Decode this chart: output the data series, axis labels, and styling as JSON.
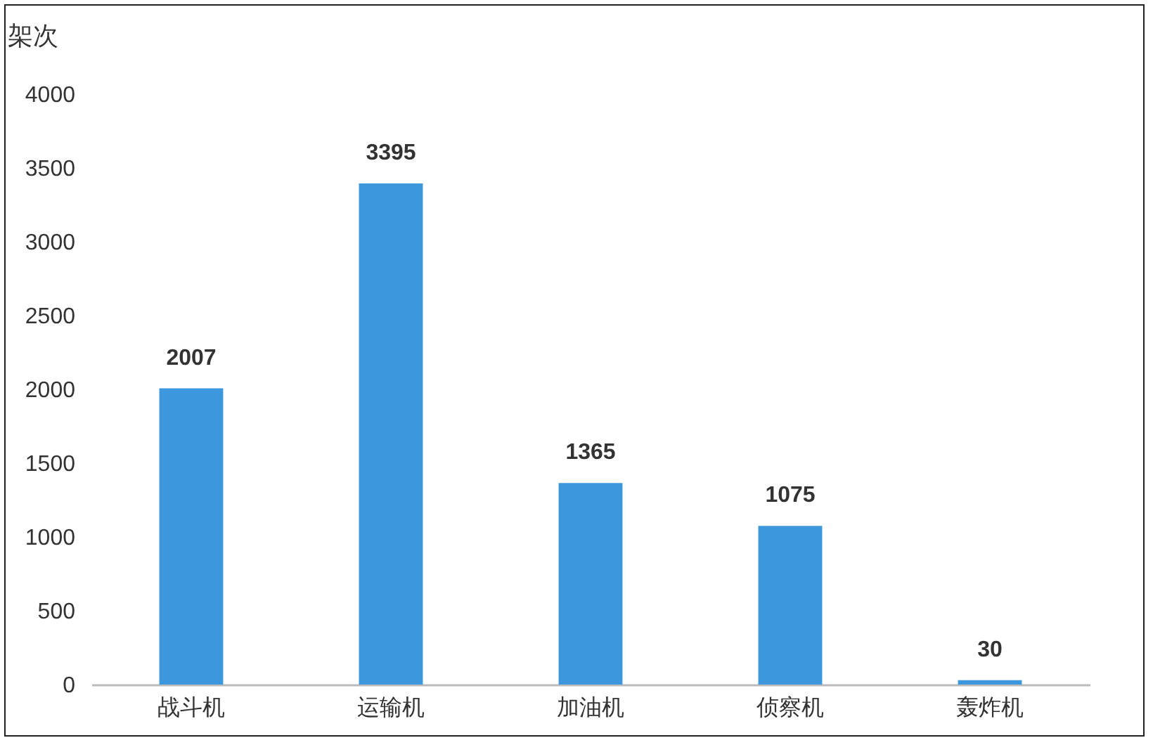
{
  "chart_data": {
    "type": "bar",
    "ylabel": "架次",
    "categories": [
      "战斗机",
      "运输机",
      "加油机",
      "侦察机",
      "轰炸机"
    ],
    "values": [
      2007,
      3395,
      1365,
      1075,
      30
    ],
    "color": "#3d97dc",
    "ylim": [
      0,
      4000
    ],
    "yticks": [
      0,
      500,
      1000,
      1500,
      2000,
      2500,
      3000,
      3500,
      4000
    ],
    "grid": false,
    "data_labels": true
  }
}
